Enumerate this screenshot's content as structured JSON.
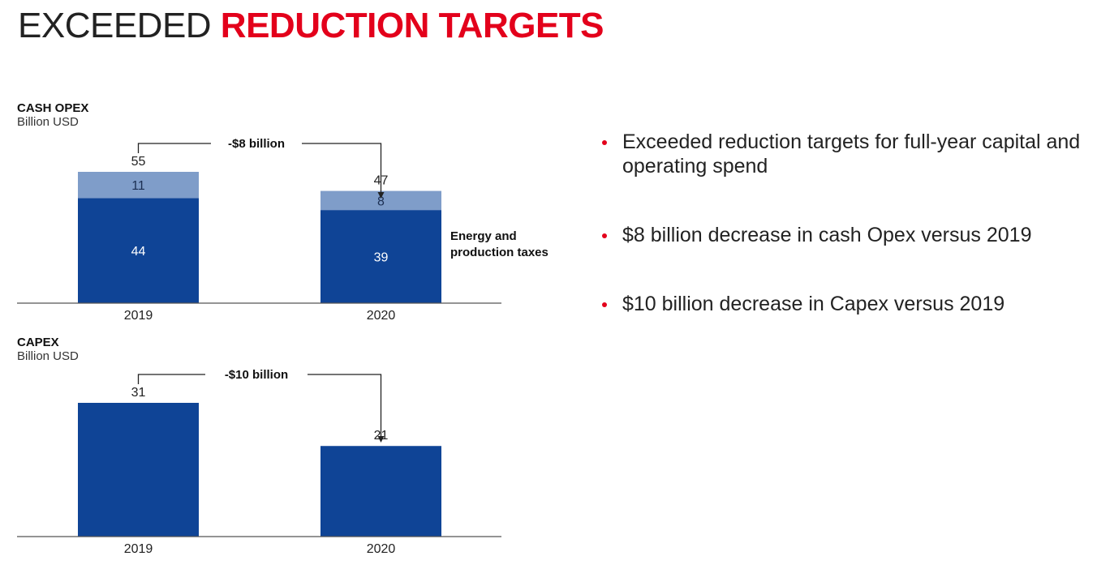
{
  "title": {
    "part1": "EXCEEDED ",
    "part2": "REDUCTION TARGETS"
  },
  "bullets": [
    "Exceeded reduction targets for full-year capital and operating spend",
    "$8 billion decrease in cash Opex versus 2019",
    "$10 billion decrease in Capex versus 2019"
  ],
  "chart_data": [
    {
      "type": "bar",
      "stacked": true,
      "title": "CASH OPEX",
      "unit": "Billion USD",
      "categories": [
        "2019",
        "2020"
      ],
      "totals": [
        55,
        47
      ],
      "series": [
        {
          "values": [
            44,
            39
          ],
          "color": "#0f4496"
        },
        {
          "name": "Energy and production taxes",
          "values": [
            11,
            8
          ],
          "color": "#7f9dc9"
        }
      ],
      "annotation": "-$8 billion",
      "ylim": [
        0,
        55
      ]
    },
    {
      "type": "bar",
      "title": "CAPEX",
      "unit": "Billion USD",
      "categories": [
        "2019",
        "2020"
      ],
      "series": [
        {
          "values": [
            31,
            21
          ],
          "color": "#0f4496"
        }
      ],
      "annotation": "-$10 billion",
      "ylim": [
        0,
        31
      ]
    }
  ]
}
